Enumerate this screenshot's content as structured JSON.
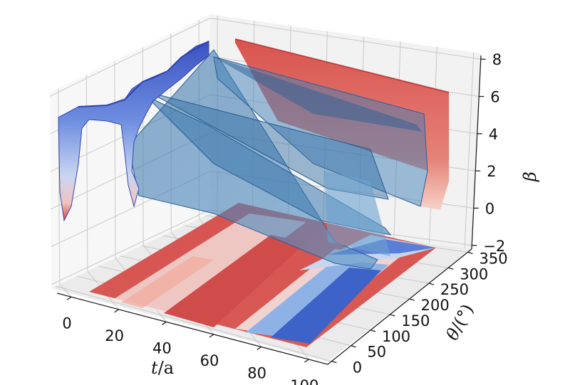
{
  "chart_data": {
    "type": "surface3d",
    "title": "",
    "axes": {
      "x": {
        "label": "t/a",
        "label_main": "t",
        "label_unit": "/a",
        "ticks": [
          0,
          20,
          40,
          60,
          80,
          100
        ],
        "range": [
          -6,
          108
        ]
      },
      "y": {
        "label": "θ/(°)",
        "label_main": "θ",
        "label_unit": "/(°)",
        "ticks": [
          0,
          50,
          100,
          150,
          200,
          250,
          300,
          350
        ],
        "range": [
          -10,
          360
        ]
      },
      "z": {
        "label": "β",
        "ticks": [
          -2,
          0,
          2,
          4,
          6,
          8
        ],
        "range": [
          -2.2,
          8.2
        ]
      }
    },
    "grid": true,
    "surfaces": [
      {
        "name": "",
        "colormap": "coolwarm",
        "t": [
          0,
          25,
          50,
          75,
          100
        ],
        "theta": 0,
        "beta": [
          5.0,
          5.3,
          5.1,
          5.8,
          6.6
        ]
      },
      {
        "name": "",
        "colormap": "coolwarm",
        "t": [
          0,
          25,
          50,
          75,
          100
        ],
        "theta": 360,
        "beta": [
          7.5,
          6.8,
          6.0,
          5.4,
          3.3
        ]
      },
      {
        "name": "",
        "colormap": "blues",
        "t": [
          25,
          100
        ],
        "theta": 100,
        "beta": [
          5.8,
          -0.5
        ]
      },
      {
        "name": "",
        "colormap": "blues",
        "t": [
          40,
          100
        ],
        "theta": 150,
        "beta": [
          5.4,
          2.2
        ]
      },
      {
        "name": "",
        "colormap": "blues",
        "t": [
          45,
          100
        ],
        "theta": 250,
        "beta": [
          6.4,
          3.6
        ]
      }
    ],
    "contour_floor": {
      "colormap": "coolwarm",
      "z": -2.2
    },
    "colors": {
      "high": "#d64f4f",
      "low": "#3a55c4",
      "mid": "#f2f2f2",
      "sheet": "#4a86b8"
    }
  }
}
